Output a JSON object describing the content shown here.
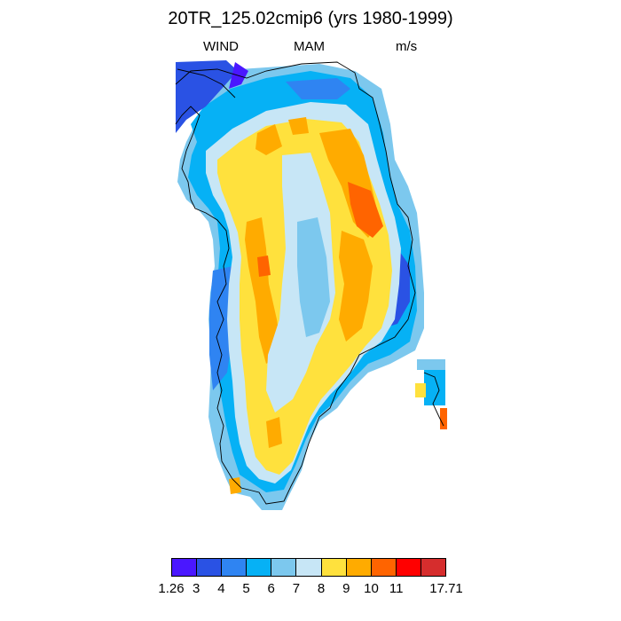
{
  "figure": {
    "title": "20TR_125.02cmip6 (yrs 1980-1999)",
    "left_label": "WIND",
    "center_label": "MAM",
    "right_label": "m/s"
  },
  "colorbar": {
    "labels": [
      "1.26",
      "3",
      "4",
      "5",
      "6",
      "7",
      "8",
      "9",
      "10",
      "11",
      "17.71"
    ],
    "colors": [
      "#4a17ff",
      "#2a52e4",
      "#2f84f2",
      "#06b1f5",
      "#7cc8ee",
      "#c7e6f6",
      "#ffe13d",
      "#ffab00",
      "#ff6400",
      "#ff0000",
      "#d62d2d"
    ]
  },
  "chart_data": {
    "type": "heatmap",
    "title": "20TR_125.02cmip6 (yrs 1980-1999)",
    "variable": "WIND",
    "season": "MAM",
    "units": "m/s",
    "value_range": [
      1.26,
      17.71
    ],
    "class_breaks": [
      1.26,
      3,
      4,
      5,
      6,
      7,
      8,
      9,
      10,
      11,
      17.71
    ],
    "region": "Greenland",
    "legend_placement": "bottom"
  }
}
